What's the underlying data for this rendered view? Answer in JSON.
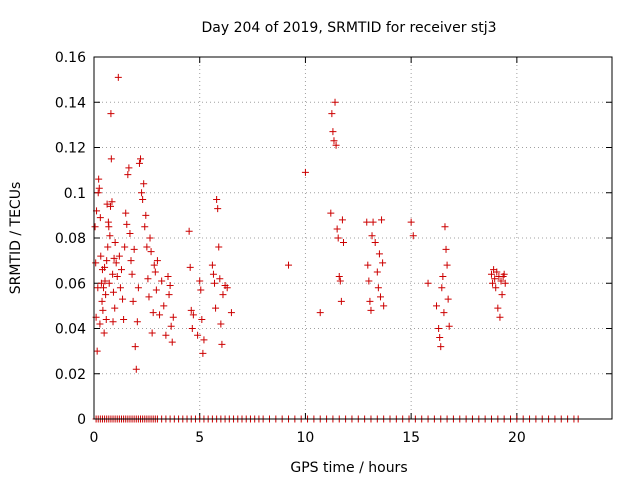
{
  "chart_data": {
    "type": "scatter",
    "title": "Day 204 of 2019, SRMTID for receiver stj3",
    "xlabel": "GPS time / hours",
    "ylabel": "SRMTID / TECUs",
    "xlim": [
      0,
      24.5
    ],
    "ylim": [
      0,
      0.16
    ],
    "xticks": [
      0,
      5,
      10,
      15,
      20
    ],
    "xtick_labels": [
      "0",
      "5",
      "10",
      "15",
      "20"
    ],
    "yticks": [
      0,
      0.02,
      0.04,
      0.06,
      0.08,
      0.1,
      0.12,
      0.14,
      0.16
    ],
    "ytick_labels": [
      "0",
      "0.02",
      "0.04",
      "0.06",
      "0.08",
      "0.1",
      "0.12",
      "0.14",
      "0.16"
    ],
    "grid": true,
    "marker": "plus",
    "color": "#cc0000",
    "series": [
      {
        "name": "SRMTID",
        "points": [
          [
            0.05,
            0.085
          ],
          [
            0.08,
            0.069
          ],
          [
            0.1,
            0.045
          ],
          [
            0.12,
            0.092
          ],
          [
            0.15,
            0.03
          ],
          [
            0.18,
            0.058
          ],
          [
            0.2,
            0.1
          ],
          [
            0.22,
            0.106
          ],
          [
            0.25,
            0.102
          ],
          [
            0.28,
            0.042
          ],
          [
            0.3,
            0.089
          ],
          [
            0.32,
            0.072
          ],
          [
            0.35,
            0.06
          ],
          [
            0.38,
            0.052
          ],
          [
            0.4,
            0.066
          ],
          [
            0.42,
            0.048
          ],
          [
            0.45,
            0.058
          ],
          [
            0.48,
            0.038
          ],
          [
            0.5,
            0.067
          ],
          [
            0.52,
            0.061
          ],
          [
            0.55,
            0.055
          ],
          [
            0.58,
            0.044
          ],
          [
            0.6,
            0.07
          ],
          [
            0.62,
            0.095
          ],
          [
            0.65,
            0.076
          ],
          [
            0.68,
            0.087
          ],
          [
            0.7,
            0.085
          ],
          [
            0.72,
            0.06
          ],
          [
            0.75,
            0.081
          ],
          [
            0.78,
            0.094
          ],
          [
            0.8,
            0.135
          ],
          [
            0.82,
            0.115
          ],
          [
            0.85,
            0.096
          ],
          [
            0.88,
            0.064
          ],
          [
            0.9,
            0.043
          ],
          [
            0.92,
            0.056
          ],
          [
            0.95,
            0.071
          ],
          [
            0.98,
            0.049
          ],
          [
            1.0,
            0.078
          ],
          [
            1.05,
            0.069
          ],
          [
            1.1,
            0.063
          ],
          [
            1.15,
            0.151
          ],
          [
            1.2,
            0.072
          ],
          [
            1.25,
            0.058
          ],
          [
            1.3,
            0.066
          ],
          [
            1.35,
            0.053
          ],
          [
            1.4,
            0.044
          ],
          [
            1.45,
            0.076
          ],
          [
            1.5,
            0.091
          ],
          [
            1.55,
            0.086
          ],
          [
            1.6,
            0.108
          ],
          [
            1.65,
            0.111
          ],
          [
            1.7,
            0.082
          ],
          [
            1.75,
            0.07
          ],
          [
            1.8,
            0.064
          ],
          [
            1.85,
            0.052
          ],
          [
            1.9,
            0.075
          ],
          [
            1.95,
            0.032
          ],
          [
            2.0,
            0.022
          ],
          [
            2.05,
            0.043
          ],
          [
            2.1,
            0.058
          ],
          [
            2.15,
            0.113
          ],
          [
            2.2,
            0.115
          ],
          [
            2.25,
            0.1
          ],
          [
            2.3,
            0.097
          ],
          [
            2.35,
            0.104
          ],
          [
            2.4,
            0.085
          ],
          [
            2.45,
            0.09
          ],
          [
            2.5,
            0.076
          ],
          [
            2.55,
            0.062
          ],
          [
            2.6,
            0.054
          ],
          [
            2.65,
            0.08
          ],
          [
            2.7,
            0.074
          ],
          [
            2.75,
            0.038
          ],
          [
            2.8,
            0.047
          ],
          [
            2.85,
            0.068
          ],
          [
            2.9,
            0.065
          ],
          [
            2.95,
            0.057
          ],
          [
            3.0,
            0.07
          ],
          [
            3.1,
            0.046
          ],
          [
            3.2,
            0.061
          ],
          [
            3.3,
            0.05
          ],
          [
            3.4,
            0.037
          ],
          [
            3.5,
            0.063
          ],
          [
            3.55,
            0.055
          ],
          [
            3.6,
            0.059
          ],
          [
            3.65,
            0.041
          ],
          [
            3.7,
            0.034
          ],
          [
            3.75,
            0.045
          ],
          [
            4.5,
            0.083
          ],
          [
            4.55,
            0.067
          ],
          [
            4.6,
            0.048
          ],
          [
            4.65,
            0.04
          ],
          [
            4.7,
            0.046
          ],
          [
            4.9,
            0.037
          ],
          [
            5.0,
            0.061
          ],
          [
            5.05,
            0.057
          ],
          [
            5.1,
            0.044
          ],
          [
            5.15,
            0.029
          ],
          [
            5.2,
            0.035
          ],
          [
            5.6,
            0.068
          ],
          [
            5.65,
            0.064
          ],
          [
            5.7,
            0.06
          ],
          [
            5.75,
            0.049
          ],
          [
            5.8,
            0.097
          ],
          [
            5.85,
            0.093
          ],
          [
            5.9,
            0.076
          ],
          [
            5.95,
            0.062
          ],
          [
            6.0,
            0.042
          ],
          [
            6.05,
            0.033
          ],
          [
            6.1,
            0.055
          ],
          [
            6.2,
            0.059
          ],
          [
            6.3,
            0.058
          ],
          [
            6.5,
            0.047
          ],
          [
            9.2,
            0.068
          ],
          [
            10.0,
            0.109
          ],
          [
            10.7,
            0.047
          ],
          [
            11.2,
            0.091
          ],
          [
            11.25,
            0.135
          ],
          [
            11.3,
            0.127
          ],
          [
            11.35,
            0.123
          ],
          [
            11.4,
            0.14
          ],
          [
            11.45,
            0.121
          ],
          [
            11.5,
            0.084
          ],
          [
            11.55,
            0.08
          ],
          [
            11.6,
            0.063
          ],
          [
            11.65,
            0.061
          ],
          [
            11.7,
            0.052
          ],
          [
            11.75,
            0.088
          ],
          [
            11.8,
            0.078
          ],
          [
            12.9,
            0.087
          ],
          [
            12.95,
            0.068
          ],
          [
            13.0,
            0.061
          ],
          [
            13.05,
            0.052
          ],
          [
            13.1,
            0.048
          ],
          [
            13.15,
            0.081
          ],
          [
            13.2,
            0.087
          ],
          [
            13.3,
            0.078
          ],
          [
            13.4,
            0.065
          ],
          [
            13.45,
            0.058
          ],
          [
            13.5,
            0.073
          ],
          [
            13.55,
            0.054
          ],
          [
            13.6,
            0.088
          ],
          [
            13.65,
            0.069
          ],
          [
            13.7,
            0.05
          ],
          [
            15.0,
            0.087
          ],
          [
            15.1,
            0.081
          ],
          [
            15.8,
            0.06
          ],
          [
            16.2,
            0.05
          ],
          [
            16.3,
            0.04
          ],
          [
            16.35,
            0.036
          ],
          [
            16.4,
            0.032
          ],
          [
            16.45,
            0.058
          ],
          [
            16.5,
            0.063
          ],
          [
            16.55,
            0.047
          ],
          [
            16.6,
            0.085
          ],
          [
            16.65,
            0.075
          ],
          [
            16.7,
            0.068
          ],
          [
            16.75,
            0.053
          ],
          [
            16.8,
            0.041
          ],
          [
            18.8,
            0.064
          ],
          [
            18.85,
            0.06
          ],
          [
            18.9,
            0.066
          ],
          [
            18.95,
            0.062
          ],
          [
            19.0,
            0.058
          ],
          [
            19.05,
            0.065
          ],
          [
            19.1,
            0.049
          ],
          [
            19.15,
            0.063
          ],
          [
            19.2,
            0.045
          ],
          [
            19.25,
            0.061
          ],
          [
            19.3,
            0.055
          ],
          [
            19.35,
            0.063
          ],
          [
            19.4,
            0.064
          ],
          [
            19.45,
            0.06
          ]
        ],
        "zero_x": [
          0.1,
          0.2,
          0.3,
          0.4,
          0.5,
          0.6,
          0.7,
          0.8,
          0.9,
          1.0,
          1.1,
          1.2,
          1.3,
          1.4,
          1.5,
          1.6,
          1.7,
          1.8,
          1.9,
          2.0,
          2.1,
          2.2,
          2.3,
          2.4,
          2.5,
          2.6,
          2.7,
          2.8,
          2.9,
          3.0,
          3.2,
          3.4,
          3.6,
          3.8,
          4.0,
          4.2,
          4.4,
          4.6,
          4.8,
          5.0,
          5.2,
          5.4,
          5.6,
          5.8,
          6.0,
          6.2,
          6.4,
          6.6,
          6.8,
          7.0,
          7.2,
          7.4,
          7.6,
          7.8,
          8.0,
          8.3,
          8.6,
          8.9,
          9.2,
          9.5,
          9.8,
          10.1,
          10.4,
          10.7,
          11.0,
          11.3,
          11.6,
          11.9,
          12.2,
          12.5,
          12.8,
          13.1,
          13.4,
          13.7,
          14.0,
          14.3,
          14.6,
          14.9,
          15.2,
          15.5,
          15.8,
          16.1,
          16.4,
          16.7,
          17.0,
          17.3,
          17.6,
          17.9,
          18.2,
          18.5,
          18.8,
          19.1,
          19.4,
          19.7,
          20.0,
          20.3,
          20.6,
          20.9,
          21.2,
          21.5,
          21.8,
          22.1,
          22.4,
          22.7,
          22.9
        ]
      }
    ]
  }
}
